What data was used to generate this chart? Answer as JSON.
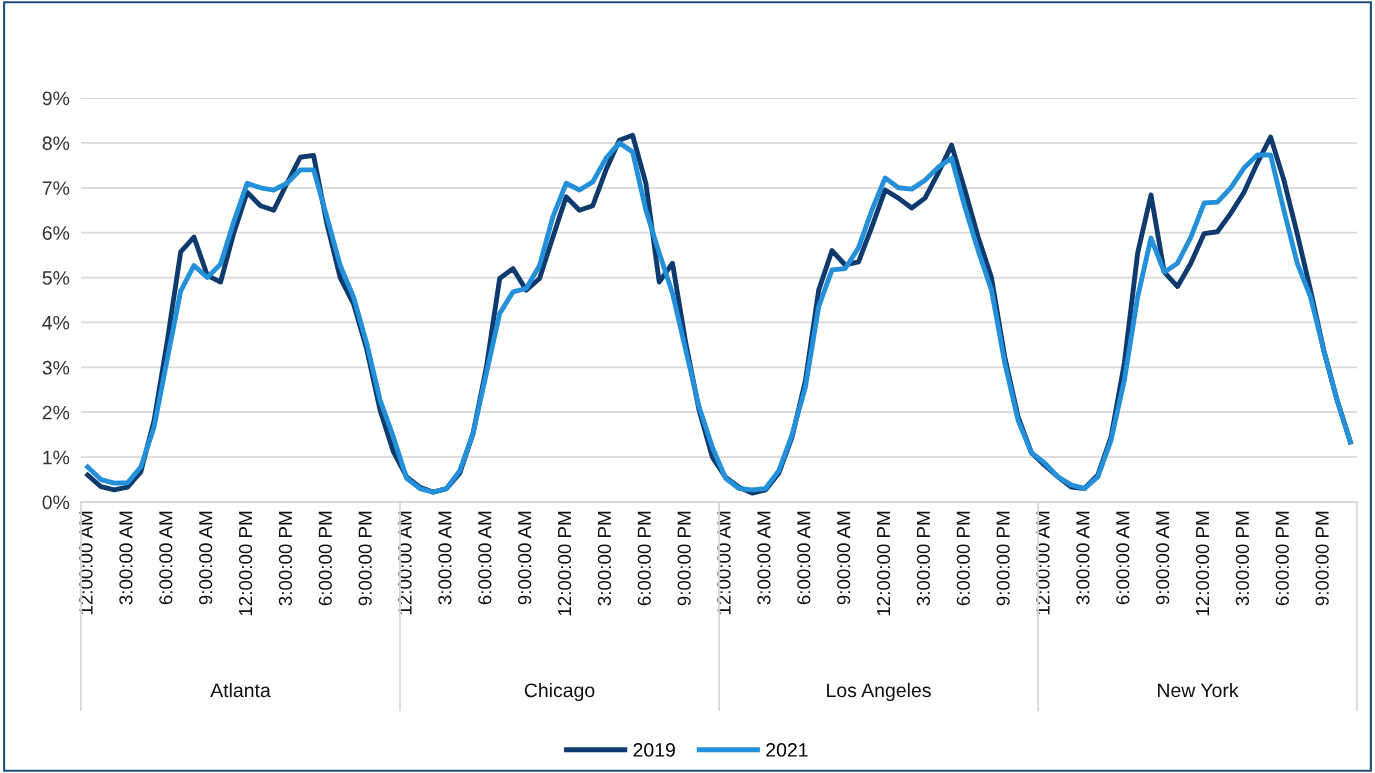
{
  "chart_data": {
    "type": "line",
    "categories": [
      "12:00:00 AM",
      null,
      null,
      "3:00:00 AM",
      null,
      null,
      "6:00:00 AM",
      null,
      null,
      "9:00:00 AM",
      null,
      null,
      "12:00:00 PM",
      null,
      null,
      "3:00:00 PM",
      null,
      null,
      "6:00:00 PM",
      null,
      null,
      "9:00:00 PM",
      null,
      null,
      "12:00:00 AM",
      null,
      null,
      "3:00:00 AM",
      null,
      null,
      "6:00:00 AM",
      null,
      null,
      "9:00:00 AM",
      null,
      null,
      "12:00:00 PM",
      null,
      null,
      "3:00:00 PM",
      null,
      null,
      "6:00:00 PM",
      null,
      null,
      "9:00:00 PM",
      null,
      null,
      "12:00:00 AM",
      null,
      null,
      "3:00:00 AM",
      null,
      null,
      "6:00:00 AM",
      null,
      null,
      "9:00:00 AM",
      null,
      null,
      "12:00:00 PM",
      null,
      null,
      "3:00:00 PM",
      null,
      null,
      "6:00:00 PM",
      null,
      null,
      "9:00:00 PM",
      null,
      null,
      "12:00:00 AM",
      null,
      null,
      "3:00:00 AM",
      null,
      null,
      "6:00:00 AM",
      null,
      null,
      "9:00:00 AM",
      null,
      null,
      "12:00:00 PM",
      null,
      null,
      "3:00:00 PM",
      null,
      null,
      "6:00:00 PM",
      null,
      null,
      "9:00:00 PM",
      null,
      null
    ],
    "annotations": [
      "Atlanta",
      "Chicago",
      "Los Angeles",
      "New York"
    ],
    "series": [
      {
        "name": "2019",
        "color": "#0f3a6e",
        "values": [
          0.6,
          0.34,
          0.27,
          0.33,
          0.67,
          1.82,
          3.6,
          5.57,
          5.9,
          5.05,
          4.9,
          6.0,
          6.9,
          6.6,
          6.5,
          7.1,
          7.68,
          7.72,
          6.2,
          5.0,
          4.42,
          3.4,
          2.05,
          1.12,
          0.56,
          0.33,
          0.22,
          0.3,
          0.64,
          1.53,
          3.0,
          4.98,
          5.2,
          4.72,
          4.98,
          5.9,
          6.8,
          6.5,
          6.6,
          7.4,
          8.06,
          8.17,
          7.1,
          4.9,
          5.32,
          3.54,
          2.05,
          1.0,
          0.55,
          0.33,
          0.2,
          0.27,
          0.64,
          1.45,
          2.7,
          4.72,
          5.6,
          5.28,
          5.35,
          6.13,
          6.95,
          6.77,
          6.55,
          6.77,
          7.33,
          7.95,
          6.95,
          5.9,
          5.0,
          3.23,
          1.9,
          1.1,
          0.82,
          0.56,
          0.33,
          0.3,
          0.6,
          1.45,
          3.1,
          5.55,
          6.84,
          5.12,
          4.8,
          5.32,
          5.98,
          6.02,
          6.43,
          6.9,
          7.55,
          8.13,
          7.17,
          5.98,
          4.72,
          3.38,
          2.27,
          1.34
        ]
      },
      {
        "name": "2021",
        "color": "#2390d9",
        "values": [
          0.78,
          0.5,
          0.42,
          0.43,
          0.78,
          1.67,
          3.2,
          4.7,
          5.27,
          5.0,
          5.3,
          6.25,
          7.1,
          7.0,
          6.95,
          7.1,
          7.4,
          7.4,
          6.35,
          5.27,
          4.57,
          3.53,
          2.27,
          1.45,
          0.53,
          0.3,
          0.22,
          0.3,
          0.7,
          1.53,
          2.87,
          4.2,
          4.68,
          4.76,
          5.27,
          6.35,
          7.1,
          6.95,
          7.13,
          7.66,
          8.0,
          7.8,
          6.5,
          5.55,
          4.65,
          3.38,
          2.12,
          1.22,
          0.53,
          0.3,
          0.27,
          0.3,
          0.7,
          1.5,
          2.56,
          4.35,
          5.17,
          5.2,
          5.67,
          6.5,
          7.22,
          7.0,
          6.97,
          7.17,
          7.46,
          7.66,
          6.57,
          5.6,
          4.72,
          3.1,
          1.82,
          1.1,
          0.87,
          0.56,
          0.38,
          0.3,
          0.56,
          1.38,
          2.72,
          4.57,
          5.88,
          5.12,
          5.32,
          5.9,
          6.66,
          6.68,
          7.0,
          7.44,
          7.73,
          7.73,
          6.5,
          5.32,
          4.57,
          3.38,
          2.27,
          1.34
        ]
      }
    ],
    "ylim": [
      0,
      9
    ],
    "yticks": [
      {
        "value": 0,
        "label": "0%"
      },
      {
        "value": 1,
        "label": "1%"
      },
      {
        "value": 2,
        "label": "2%"
      },
      {
        "value": 3,
        "label": "3%"
      },
      {
        "value": 4,
        "label": "4%"
      },
      {
        "value": 5,
        "label": "5%"
      },
      {
        "value": 6,
        "label": "6%"
      },
      {
        "value": 7,
        "label": "7%"
      },
      {
        "value": 8,
        "label": "8%"
      },
      {
        "value": 9,
        "label": "9%"
      }
    ],
    "grid": "y",
    "legend": "bottom",
    "marker": "none",
    "line_style": "solid"
  }
}
